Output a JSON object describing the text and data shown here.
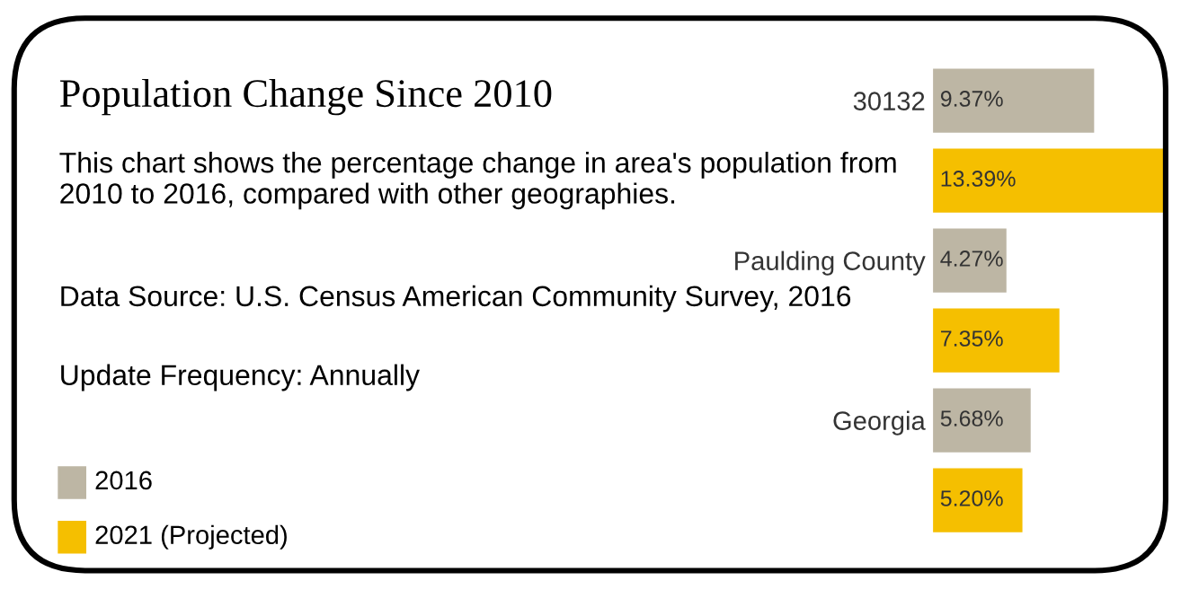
{
  "chart_data": {
    "type": "bar",
    "orientation": "horizontal",
    "title": "Population Change Since 2010",
    "subtitle": "This chart shows the percentage change in area's population from 2010 to 2016, compared with other geographies.",
    "annotations": [
      "Data Source: U.S. Census American Community Survey, 2016",
      "Update Frequency: Annually"
    ],
    "categories": [
      "30132",
      "Paulding County",
      "Georgia"
    ],
    "series": [
      {
        "name": "2016",
        "color": "#bdb6a4",
        "values": [
          9.37,
          4.27,
          5.68
        ],
        "value_labels": [
          "9.37%",
          "4.27%",
          "5.68%"
        ]
      },
      {
        "name": "2021 (Projected)",
        "color": "#f5bf00",
        "values": [
          13.39,
          7.35,
          5.2
        ],
        "value_labels": [
          "13.39%",
          "7.35%",
          "5.20%"
        ]
      }
    ],
    "legend": "bottom left",
    "grid": false
  }
}
